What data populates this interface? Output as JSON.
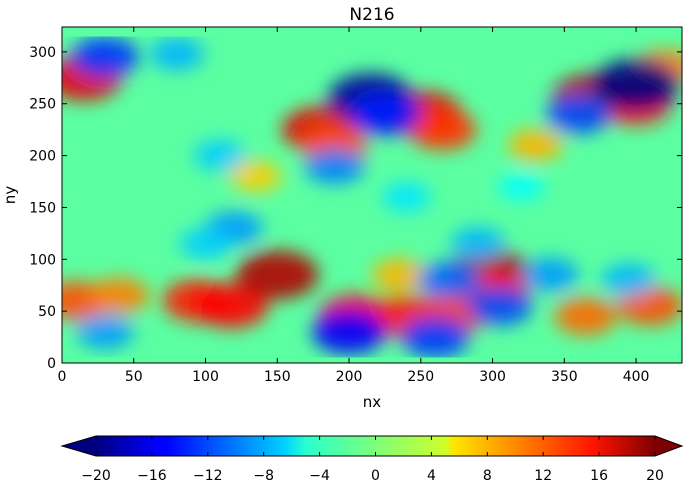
{
  "chart_data": {
    "type": "heatmap",
    "title": "N216",
    "xlabel": "nx",
    "ylabel": "ny",
    "xlim": [
      0,
      432
    ],
    "ylim": [
      0,
      324
    ],
    "xticks": [
      0,
      50,
      100,
      150,
      200,
      250,
      300,
      350,
      400
    ],
    "yticks": [
      0,
      50,
      100,
      150,
      200,
      250,
      300
    ],
    "grid": false,
    "colormap": "jet",
    "colorbar": {
      "orientation": "horizontal",
      "placement": "bottom",
      "extend": "both",
      "range": [
        -20,
        20
      ],
      "ticks": [
        -20,
        -16,
        -12,
        -8,
        -4,
        0,
        4,
        8,
        12,
        16,
        20
      ],
      "tick_labels": [
        "−20",
        "−16",
        "−12",
        "−8",
        "−4",
        "0",
        "4",
        "8",
        "12",
        "16",
        "20"
      ]
    },
    "features": [
      {
        "x": 95,
        "y": 60,
        "value": 14
      },
      {
        "x": 118,
        "y": 55,
        "value": 15
      },
      {
        "x": 150,
        "y": 85,
        "value": 18
      },
      {
        "x": 205,
        "y": 45,
        "value": 15
      },
      {
        "x": 240,
        "y": 45,
        "value": 14
      },
      {
        "x": 275,
        "y": 50,
        "value": 13
      },
      {
        "x": 298,
        "y": 85,
        "value": 19
      },
      {
        "x": 300,
        "y": 70,
        "value": 14
      },
      {
        "x": 365,
        "y": 45,
        "value": 11
      },
      {
        "x": 410,
        "y": 55,
        "value": 12
      },
      {
        "x": 10,
        "y": 60,
        "value": 12
      },
      {
        "x": 40,
        "y": 65,
        "value": 10
      },
      {
        "x": 180,
        "y": 225,
        "value": 16
      },
      {
        "x": 190,
        "y": 210,
        "value": 12
      },
      {
        "x": 252,
        "y": 240,
        "value": 16
      },
      {
        "x": 265,
        "y": 225,
        "value": 13
      },
      {
        "x": 370,
        "y": 255,
        "value": 18
      },
      {
        "x": 400,
        "y": 250,
        "value": 14
      },
      {
        "x": 15,
        "y": 275,
        "value": 16
      },
      {
        "x": 420,
        "y": 285,
        "value": 10
      },
      {
        "x": 235,
        "y": 85,
        "value": 8
      },
      {
        "x": 330,
        "y": 210,
        "value": 8
      },
      {
        "x": 135,
        "y": 180,
        "value": 7
      },
      {
        "x": 215,
        "y": 255,
        "value": -19
      },
      {
        "x": 225,
        "y": 240,
        "value": -14
      },
      {
        "x": 190,
        "y": 190,
        "value": -10
      },
      {
        "x": 400,
        "y": 268,
        "value": -20
      },
      {
        "x": 360,
        "y": 240,
        "value": -12
      },
      {
        "x": 30,
        "y": 295,
        "value": -13
      },
      {
        "x": 80,
        "y": 298,
        "value": -8
      },
      {
        "x": 200,
        "y": 30,
        "value": -15
      },
      {
        "x": 260,
        "y": 25,
        "value": -13
      },
      {
        "x": 270,
        "y": 80,
        "value": -11
      },
      {
        "x": 305,
        "y": 55,
        "value": -12
      },
      {
        "x": 290,
        "y": 115,
        "value": -8
      },
      {
        "x": 120,
        "y": 130,
        "value": -9
      },
      {
        "x": 100,
        "y": 115,
        "value": -7
      },
      {
        "x": 340,
        "y": 85,
        "value": -9
      },
      {
        "x": 395,
        "y": 80,
        "value": -8
      },
      {
        "x": 240,
        "y": 160,
        "value": -6
      },
      {
        "x": 30,
        "y": 30,
        "value": -9
      },
      {
        "x": 110,
        "y": 200,
        "value": -7
      },
      {
        "x": 320,
        "y": 170,
        "value": -5
      }
    ]
  }
}
